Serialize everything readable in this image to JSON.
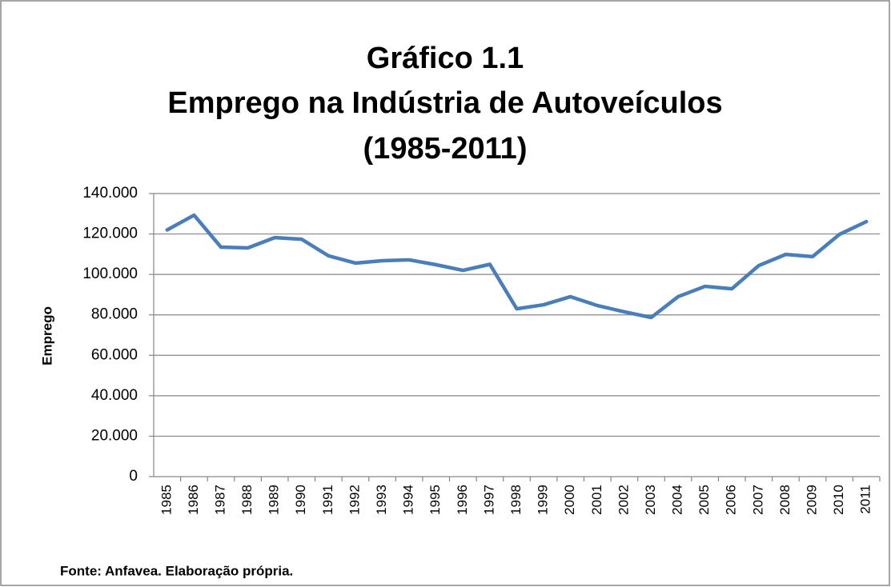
{
  "chart_data": {
    "type": "line",
    "title": [
      "Gráfico 1.1",
      "Emprego na Indústria de Autoveículos",
      "(1985-2011)"
    ],
    "y_label": "Emprego",
    "source": "Fonte: Anfavea. Elaboração própria.",
    "categories": [
      "1985",
      "1986",
      "1987",
      "1988",
      "1989",
      "1990",
      "1991",
      "1992",
      "1993",
      "1994",
      "1995",
      "1996",
      "1997",
      "1998",
      "1999",
      "2000",
      "2001",
      "2002",
      "2003",
      "2004",
      "2005",
      "2006",
      "2007",
      "2008",
      "2009",
      "2010",
      "2011"
    ],
    "series": [
      {
        "name": "Emprego",
        "color": "#4a7ebb",
        "values": [
          122000,
          129300,
          113500,
          113100,
          118200,
          117400,
          109200,
          105600,
          106800,
          107200,
          104800,
          102000,
          105000,
          83000,
          85000,
          89000,
          84600,
          81500,
          78700,
          89000,
          94100,
          92900,
          104400,
          109900,
          108800,
          119800,
          126100
        ]
      }
    ],
    "ylim": [
      0,
      140000
    ],
    "yticks": [
      0,
      {
        "value": 20000,
        "label": "20.000"
      },
      {
        "value": 40000,
        "label": "40.000"
      },
      {
        "value": 60000,
        "label": "60.000"
      },
      {
        "value": 80000,
        "label": "80.000"
      },
      {
        "value": 100000,
        "label": "100.000"
      },
      {
        "value": 120000,
        "label": "120.000"
      },
      {
        "value": 140000,
        "label": "140.000"
      }
    ],
    "grid": true
  }
}
